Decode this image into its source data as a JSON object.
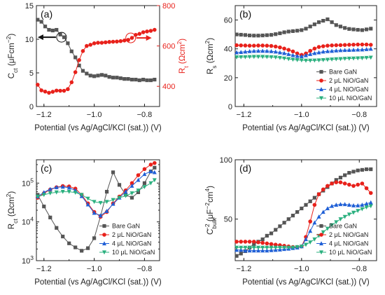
{
  "chart_data": [
    {
      "panel": "(a)",
      "type": "line",
      "xlabel": "Potential (vs Ag/AgCl/KCl (sat.)) (V)",
      "xlim": [
        -1.23,
        -0.74
      ],
      "xticks": [
        -1.2,
        -1.0,
        -0.8
      ],
      "xtick_labels": [
        "-1.2",
        "-1.0",
        "-0.8"
      ],
      "ylabel_left": "C_ct (μFcm^-2)",
      "ylabel_left_parts": [
        "C",
        "ct",
        " (μFcm",
        "−2",
        ")"
      ],
      "ylim_left": [
        0,
        15
      ],
      "yticks_left": [
        0,
        5,
        10,
        15
      ],
      "ylabel_right": "R_t (Ωcm^2)",
      "ylabel_right_parts": [
        "R",
        "t",
        " (Ωcm",
        "2",
        ")"
      ],
      "ylim_right": [
        300,
        800
      ],
      "yticks_right": [
        400,
        600,
        800
      ],
      "series": [
        {
          "axis": "left",
          "color": "#555555",
          "marker": "square",
          "x": [
            -1.225,
            -1.21,
            -1.195,
            -1.18,
            -1.165,
            -1.15,
            -1.135,
            -1.12,
            -1.105,
            -1.09,
            -1.075,
            -1.06,
            -1.045,
            -1.03,
            -1.015,
            -1.0,
            -0.985,
            -0.97,
            -0.955,
            -0.94,
            -0.925,
            -0.91,
            -0.895,
            -0.88,
            -0.865,
            -0.85,
            -0.835,
            -0.82,
            -0.805,
            -0.79,
            -0.775,
            -0.76
          ],
          "y": [
            12.9,
            12.6,
            11.9,
            11.4,
            11.3,
            11.4,
            10.7,
            10.3,
            9.4,
            8.2,
            7.3,
            6.1,
            5.3,
            4.9,
            4.6,
            4.5,
            4.6,
            4.7,
            4.6,
            4.4,
            4.3,
            4.3,
            4.2,
            4.1,
            4.1,
            4.0,
            4.0,
            3.9,
            4.0,
            3.9,
            3.9,
            4.0
          ]
        },
        {
          "axis": "right",
          "color": "#e8211b",
          "marker": "circle",
          "x": [
            -1.225,
            -1.21,
            -1.195,
            -1.18,
            -1.165,
            -1.15,
            -1.135,
            -1.12,
            -1.105,
            -1.09,
            -1.075,
            -1.06,
            -1.045,
            -1.03,
            -1.015,
            -1.0,
            -0.985,
            -0.97,
            -0.955,
            -0.94,
            -0.925,
            -0.91,
            -0.895,
            -0.88,
            -0.865,
            -0.85,
            -0.835,
            -0.82,
            -0.805,
            -0.79,
            -0.775,
            -0.76
          ],
          "y": [
            408,
            380,
            374,
            368,
            373,
            379,
            378,
            378,
            386,
            420,
            470,
            530,
            575,
            600,
            606,
            613,
            616,
            616,
            618,
            620,
            621,
            622,
            624,
            627,
            630,
            640,
            655,
            660,
            668,
            672,
            675,
            680
          ]
        }
      ],
      "annotations": [
        "circle around black curve with left-pointing arrow",
        "circle around red curve with right-pointing arrow"
      ]
    },
    {
      "panel": "(b)",
      "type": "line",
      "xlabel": "Potential (vs Ag/AgCl/KCl (sat.)) (V)",
      "xlim": [
        -1.23,
        -0.74
      ],
      "xticks": [
        -1.2,
        -1.0,
        -0.8
      ],
      "xtick_labels": [
        "-1.2",
        "-1.0",
        "-0.8"
      ],
      "ylabel": "R_s (Ωcm^2)",
      "ylabel_parts": [
        "R",
        "s",
        " (Ωcm",
        "2",
        ")"
      ],
      "ylim": [
        0,
        70
      ],
      "yticks": [
        0,
        20,
        40,
        60
      ],
      "legend": "lower-right",
      "x": [
        -1.225,
        -1.21,
        -1.195,
        -1.18,
        -1.165,
        -1.15,
        -1.135,
        -1.12,
        -1.105,
        -1.09,
        -1.075,
        -1.06,
        -1.045,
        -1.03,
        -1.015,
        -1.0,
        -0.985,
        -0.97,
        -0.955,
        -0.94,
        -0.925,
        -0.91,
        -0.895,
        -0.88,
        -0.865,
        -0.85,
        -0.835,
        -0.82,
        -0.805,
        -0.79,
        -0.775,
        -0.76
      ],
      "series": [
        {
          "name": "Bare GaN",
          "color": "#555555",
          "marker": "square",
          "y": [
            50,
            49.8,
            49.6,
            49.3,
            49.2,
            49.2,
            49.3,
            49.5,
            49.7,
            50.2,
            50.8,
            51.5,
            52,
            52.3,
            52.6,
            53,
            54,
            55.5,
            57,
            58.5,
            59.5,
            60.5,
            58.5,
            56.5,
            55.5,
            54.5,
            53.8,
            53.5,
            53.2,
            53,
            53.5,
            54
          ]
        },
        {
          "name": "2 μL NiO/GaN",
          "color": "#e8211b",
          "marker": "circle",
          "y": [
            42.5,
            42.4,
            42.3,
            42.2,
            42.2,
            42.3,
            42.3,
            42.2,
            42,
            41.6,
            41,
            40.2,
            39.3,
            38.2,
            36.8,
            35.8,
            36.8,
            38.6,
            40.2,
            41.3,
            41.8,
            42.2,
            42.4,
            42.5,
            42.6,
            42.7,
            42.8,
            42.9,
            43,
            43,
            43,
            42.8
          ]
        },
        {
          "name": "4 μL NiO/GaN",
          "color": "#1f5fd6",
          "marker": "triangle-up",
          "y": [
            37.5,
            37.7,
            38,
            38.3,
            38.5,
            38.6,
            38.6,
            38.5,
            38.3,
            38,
            37.5,
            37,
            36.3,
            35.6,
            35,
            34.8,
            35.5,
            36.3,
            37,
            37.5,
            38,
            38.3,
            38.5,
            38.8,
            39,
            39.1,
            39.2,
            39.3,
            39.4,
            39.5,
            39.7,
            40
          ]
        },
        {
          "name": "10 μL NiO/GaN",
          "color": "#2bb07f",
          "marker": "triangle-down",
          "y": [
            34.2,
            34.3,
            34.3,
            34.4,
            34.5,
            34.5,
            34.5,
            34.4,
            34.3,
            34.1,
            33.8,
            33.4,
            33,
            32.6,
            32.3,
            32.1,
            31.9,
            31.9,
            32,
            32.1,
            32.3,
            32.5,
            32.7,
            32.9,
            33,
            33.2,
            33.3,
            33.4,
            33.5,
            33.6,
            33.8,
            34
          ]
        }
      ]
    },
    {
      "panel": "(c)",
      "type": "line",
      "scale_y": "log",
      "xlabel": "Potential (vs Ag/AgCl/KCl (sat.)) (V)",
      "xlim": [
        -1.23,
        -0.74
      ],
      "xticks": [
        -1.2,
        -1.0,
        -0.8
      ],
      "xtick_labels": [
        "-1.2",
        "-1.0",
        "-0.8"
      ],
      "ylabel": "R_ct (Ωcm^2)",
      "ylabel_parts": [
        "R",
        "ct",
        " (Ωcm",
        "2",
        ")"
      ],
      "ylim": [
        1000,
        400000
      ],
      "yticks": [
        1000,
        10000,
        100000
      ],
      "ytick_labels": [
        [
          "10",
          "3"
        ],
        [
          "10",
          "4"
        ],
        [
          "10",
          "5"
        ]
      ],
      "legend": "lower-right",
      "x": [
        -1.225,
        -1.2,
        -1.175,
        -1.15,
        -1.125,
        -1.1,
        -1.075,
        -1.05,
        -1.025,
        -1.0,
        -0.975,
        -0.95,
        -0.925,
        -0.9,
        -0.875,
        -0.85,
        -0.825,
        -0.8,
        -0.775,
        -0.76
      ],
      "series": [
        {
          "name": "Bare GaN",
          "color": "#555555",
          "marker": "square",
          "y": [
            50000,
            25000,
            13000,
            7000,
            4200,
            2800,
            2200,
            1800,
            2100,
            3800,
            14000,
            60000,
            190000,
            90000,
            50000,
            42000,
            58000,
            100000,
            200000,
            250000
          ]
        },
        {
          "name": "2 μL NiO/GaN",
          "color": "#e8211b",
          "marker": "circle",
          "y": [
            42000,
            55000,
            68000,
            78000,
            84000,
            82000,
            72000,
            50000,
            30000,
            18000,
            13500,
            18000,
            30000,
            45000,
            65000,
            100000,
            160000,
            230000,
            300000,
            330000
          ]
        },
        {
          "name": "4 μL NiO/GaN",
          "color": "#1f5fd6",
          "marker": "triangle-up",
          "y": [
            45000,
            58000,
            70000,
            78000,
            80000,
            76000,
            65000,
            46000,
            28000,
            17000,
            14500,
            19000,
            29000,
            42000,
            60000,
            85000,
            120000,
            170000,
            200000,
            190000
          ]
        },
        {
          "name": "10 μL NiO/GaN",
          "color": "#2bb07f",
          "marker": "triangle-down",
          "y": [
            45000,
            50000,
            55000,
            58000,
            60000,
            60000,
            57000,
            50000,
            40000,
            33000,
            31000,
            33000,
            37000,
            42000,
            47000,
            55000,
            65000,
            80000,
            100000,
            120000
          ]
        }
      ]
    },
    {
      "panel": "(d)",
      "type": "line",
      "xlabel": "Potential (vs Ag/AgCl/KCl (sat.)) (V)",
      "xlim": [
        -1.23,
        -0.74
      ],
      "xticks": [
        -1.2,
        -1.0,
        -0.8
      ],
      "xtick_labels": [
        "-1.2",
        "-1.0",
        "-0.8"
      ],
      "ylabel": "C_bulk^-2 (μF^-2cm^4)",
      "ylabel_parts": [
        "C",
        "bulk",
        "−2",
        " (μF",
        "−2",
        "cm",
        "4",
        ")"
      ],
      "ylim": [
        15,
        100
      ],
      "yticks": [
        50,
        100
      ],
      "legend": "lower-right",
      "x": [
        -1.225,
        -1.21,
        -1.195,
        -1.18,
        -1.165,
        -1.15,
        -1.135,
        -1.12,
        -1.105,
        -1.09,
        -1.075,
        -1.06,
        -1.045,
        -1.03,
        -1.015,
        -1.0,
        -0.985,
        -0.97,
        -0.955,
        -0.94,
        -0.925,
        -0.91,
        -0.895,
        -0.88,
        -0.865,
        -0.85,
        -0.835,
        -0.82,
        -0.805,
        -0.79,
        -0.775,
        -0.76
      ],
      "series": [
        {
          "name": "Bare GaN",
          "color": "#555555",
          "marker": "square",
          "y": [
            19,
            21,
            23,
            26,
            29,
            31,
            33,
            36,
            38,
            41,
            44,
            47,
            50,
            53,
            56,
            59,
            62,
            65,
            68,
            71,
            74,
            77,
            80,
            83,
            85,
            87,
            89,
            90,
            91,
            91.5,
            92,
            92
          ]
        },
        {
          "name": "2 μL NiO/GaN",
          "color": "#e8211b",
          "marker": "circle",
          "y": [
            31,
            31,
            31,
            31,
            31,
            30.5,
            30,
            29.5,
            29,
            28.5,
            28,
            27.5,
            27,
            26.5,
            26.5,
            27,
            35,
            48,
            62,
            71,
            75,
            78,
            80,
            81,
            81,
            80,
            79,
            78,
            79,
            80,
            76,
            72
          ]
        },
        {
          "name": "4 μL NiO/GaN",
          "color": "#1f5fd6",
          "marker": "triangle-up",
          "y": [
            24,
            24,
            23.5,
            23.5,
            23.5,
            23.5,
            23.5,
            23.5,
            23.8,
            24,
            24.3,
            24.7,
            25,
            25.5,
            26,
            27,
            33,
            40,
            47,
            52,
            56,
            59,
            61,
            62,
            62.5,
            62.5,
            62,
            61.5,
            61.5,
            62,
            63,
            64
          ]
        },
        {
          "name": "10 μL NiO/GaN",
          "color": "#2bb07f",
          "marker": "triangle-down",
          "y": [
            26,
            26,
            26,
            26,
            26,
            26,
            26,
            26,
            26,
            26,
            26,
            26,
            26,
            26,
            26.5,
            27,
            28.5,
            30.5,
            33,
            36,
            39,
            42,
            45,
            47.5,
            50,
            52,
            54,
            55.5,
            57,
            58.5,
            60,
            61
          ]
        }
      ]
    }
  ]
}
